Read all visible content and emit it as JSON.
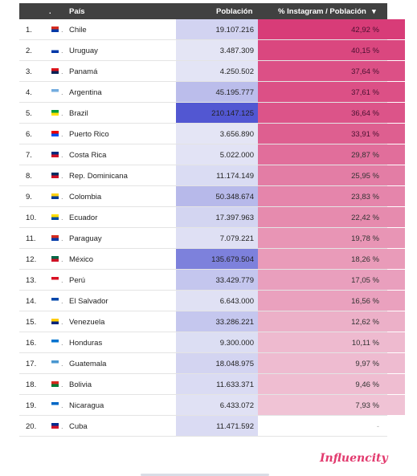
{
  "header": {
    "dot": ".",
    "col_country": "País",
    "col_population": "Población",
    "col_ratio": "% Instagram / Población",
    "sort_icon": "▾"
  },
  "brand": "Influencity",
  "chart_data": {
    "type": "table",
    "columns": [
      "País",
      "Población",
      "% Instagram / Población"
    ],
    "rows": [
      {
        "rank": "1.",
        "country": "Chile",
        "population": "19.107.216",
        "ratio": "42,92 %",
        "pop_value": 19107216,
        "ratio_value": 42.92,
        "flag": [
          "#d52b1e",
          "#0039a6"
        ]
      },
      {
        "rank": "2.",
        "country": "Uruguay",
        "population": "3.487.309",
        "ratio": "40,15 %",
        "pop_value": 3487309,
        "ratio_value": 40.15,
        "flag": [
          "#ffffff",
          "#0038a8"
        ]
      },
      {
        "rank": "3.",
        "country": "Panamá",
        "population": "4.250.502",
        "ratio": "37,64 %",
        "pop_value": 4250502,
        "ratio_value": 37.64,
        "flag": [
          "#da121a",
          "#072357"
        ]
      },
      {
        "rank": "4.",
        "country": "Argentina",
        "population": "45.195.777",
        "ratio": "37,61 %",
        "pop_value": 45195777,
        "ratio_value": 37.61,
        "flag": [
          "#74acdf",
          "#ffffff"
        ]
      },
      {
        "rank": "5.",
        "country": "Brazil",
        "population": "210.147.125",
        "ratio": "36,64 %",
        "pop_value": 210147125,
        "ratio_value": 36.64,
        "flag": [
          "#009c3b",
          "#ffdf00"
        ]
      },
      {
        "rank": "6.",
        "country": "Puerto Rico",
        "population": "3.656.890",
        "ratio": "33,91 %",
        "pop_value": 3656890,
        "ratio_value": 33.91,
        "flag": [
          "#ed0000",
          "#0050f0"
        ]
      },
      {
        "rank": "7.",
        "country": "Costa Rica",
        "population": "5.022.000",
        "ratio": "29,87 %",
        "pop_value": 5022000,
        "ratio_value": 29.87,
        "flag": [
          "#002b7f",
          "#ce1126"
        ]
      },
      {
        "rank": "8.",
        "country": "Rep. Dominicana",
        "population": "11.174.149",
        "ratio": "25,95 %",
        "pop_value": 11174149,
        "ratio_value": 25.95,
        "flag": [
          "#002d62",
          "#ce1126"
        ]
      },
      {
        "rank": "9.",
        "country": "Colombia",
        "population": "50.348.674",
        "ratio": "23,83 %",
        "pop_value": 50348674,
        "ratio_value": 23.83,
        "flag": [
          "#fcd116",
          "#003893"
        ]
      },
      {
        "rank": "10.",
        "country": "Ecuador",
        "population": "17.397.963",
        "ratio": "22,42 %",
        "pop_value": 17397963,
        "ratio_value": 22.42,
        "flag": [
          "#ffdd00",
          "#034ea2"
        ]
      },
      {
        "rank": "11.",
        "country": "Paraguay",
        "population": "7.079.221",
        "ratio": "19,78 %",
        "pop_value": 7079221,
        "ratio_value": 19.78,
        "flag": [
          "#d52b1e",
          "#0038a8"
        ]
      },
      {
        "rank": "12.",
        "country": "México",
        "population": "135.679.504",
        "ratio": "18,26 %",
        "pop_value": 135679504,
        "ratio_value": 18.26,
        "flag": [
          "#006847",
          "#ce1126"
        ]
      },
      {
        "rank": "13.",
        "country": "Perú",
        "population": "33.429.779",
        "ratio": "17,05 %",
        "pop_value": 33429779,
        "ratio_value": 17.05,
        "flag": [
          "#d91023",
          "#ffffff"
        ]
      },
      {
        "rank": "14.",
        "country": "El Salvador",
        "population": "6.643.000",
        "ratio": "16,56 %",
        "pop_value": 6643000,
        "ratio_value": 16.56,
        "flag": [
          "#0047ab",
          "#ffffff"
        ]
      },
      {
        "rank": "15.",
        "country": "Venezuela",
        "population": "33.286.221",
        "ratio": "12,62 %",
        "pop_value": 33286221,
        "ratio_value": 12.62,
        "flag": [
          "#ffcc00",
          "#00247d"
        ]
      },
      {
        "rank": "16.",
        "country": "Honduras",
        "population": "9.300.000",
        "ratio": "10,11 %",
        "pop_value": 9300000,
        "ratio_value": 10.11,
        "flag": [
          "#0073cf",
          "#ffffff"
        ]
      },
      {
        "rank": "17.",
        "country": "Guatemala",
        "population": "18.048.975",
        "ratio": "9,97 %",
        "pop_value": 18048975,
        "ratio_value": 9.97,
        "flag": [
          "#4997d0",
          "#ffffff"
        ]
      },
      {
        "rank": "18.",
        "country": "Bolivia",
        "population": "11.633.371",
        "ratio": "9,46 %",
        "pop_value": 11633371,
        "ratio_value": 9.46,
        "flag": [
          "#d52b1e",
          "#007934"
        ]
      },
      {
        "rank": "19.",
        "country": "Nicaragua",
        "population": "6.433.072",
        "ratio": "7,93 %",
        "pop_value": 6433072,
        "ratio_value": 7.93,
        "flag": [
          "#0067c6",
          "#ffffff"
        ]
      },
      {
        "rank": "20.",
        "country": "Cuba",
        "population": "11.471.592",
        "ratio": "-",
        "pop_value": 11471592,
        "ratio_value": null,
        "flag": [
          "#002a8f",
          "#cf142b"
        ]
      }
    ]
  }
}
